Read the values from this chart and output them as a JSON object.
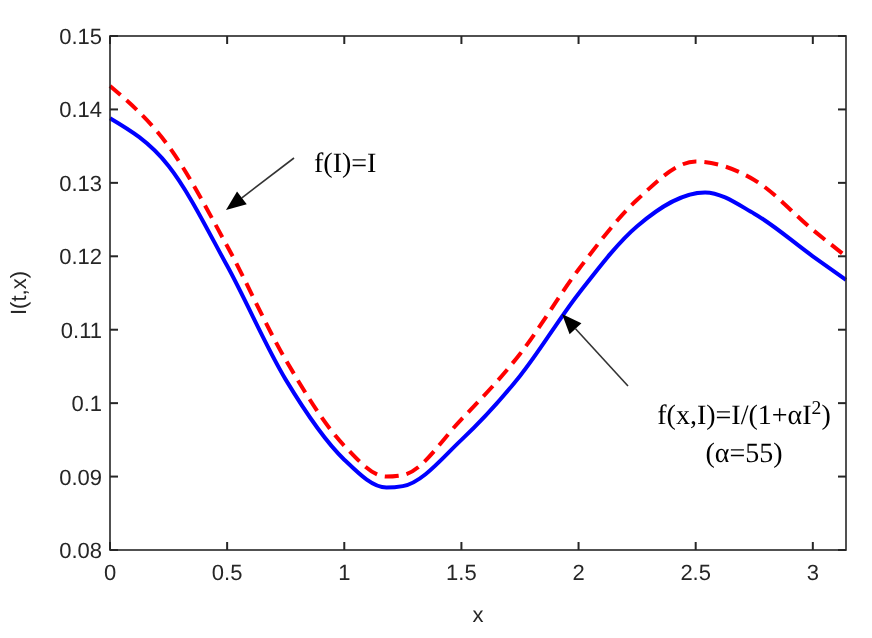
{
  "chart_data": {
    "type": "line",
    "xlabel": "x",
    "ylabel": "I(t,x)",
    "xlim": [
      0,
      3.1416
    ],
    "xticks": [
      0,
      0.5,
      1,
      1.5,
      2,
      2.5,
      3
    ],
    "ylim": [
      0.08,
      0.15
    ],
    "yticks": [
      0.08,
      0.09,
      0.1,
      0.11,
      0.12,
      0.13,
      0.14,
      0.15
    ],
    "grid": false,
    "marker": "none",
    "series": [
      {
        "color": "#ff0000",
        "line_style": "dashed",
        "x": [
          0,
          0.25,
          0.5,
          0.75,
          1,
          1.18,
          1.25,
          1.5,
          1.75,
          2,
          2.25,
          2.5,
          2.75,
          3,
          3.1416
        ],
        "values": [
          0.1432,
          0.135,
          0.1214,
          0.1059,
          0.0942,
          0.09,
          0.0902,
          0.0978,
          0.1067,
          0.1182,
          0.1277,
          0.1329,
          0.1304,
          0.1236,
          0.12
        ]
      },
      {
        "color": "#0000ff",
        "line_style": "solid",
        "x": [
          0,
          0.25,
          0.5,
          0.75,
          1,
          1.18,
          1.25,
          1.5,
          1.75,
          2,
          2.25,
          2.54,
          2.75,
          3,
          3.1416
        ],
        "values": [
          0.1388,
          0.1323,
          0.1187,
          0.1032,
          0.0923,
          0.0885,
          0.0887,
          0.095,
          0.1037,
          0.1149,
          0.1241,
          0.1287,
          0.1258,
          0.12,
          0.1168
        ]
      }
    ],
    "annotations": [
      "f(I)=I",
      "f(x,I)=I/(1+αI$^{2}$)",
      "(α=55)"
    ]
  }
}
